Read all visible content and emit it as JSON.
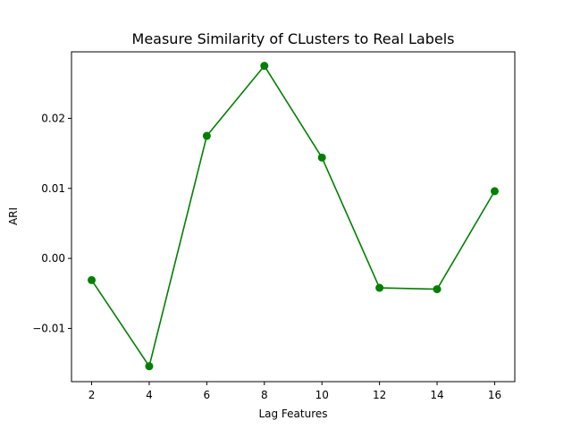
{
  "chart_data": {
    "type": "line",
    "title": "Measure Similarity of CLusters to Real Labels",
    "xlabel": "Lag  Features",
    "ylabel": "ARI",
    "x": [
      2,
      4,
      6,
      8,
      10,
      12,
      14,
      16
    ],
    "series": [
      {
        "values": [
          -0.0031,
          -0.0154,
          0.0175,
          0.0275,
          0.0144,
          -0.0042,
          -0.0044,
          0.0096
        ],
        "color": "#008000",
        "marker": "circle"
      }
    ],
    "xlim": [
      1.3,
      16.7
    ],
    "ylim": [
      -0.0176,
      0.0295
    ],
    "xticks": [
      2,
      4,
      6,
      8,
      10,
      12,
      14,
      16
    ],
    "xtick_labels": [
      "2",
      "4",
      "6",
      "8",
      "10",
      "12",
      "14",
      "16"
    ],
    "yticks": [
      -0.01,
      0.0,
      0.01,
      0.02
    ],
    "ytick_labels": [
      "−0.01",
      "0.00",
      "0.01",
      "0.02"
    ],
    "grid": false,
    "legend": "none"
  }
}
